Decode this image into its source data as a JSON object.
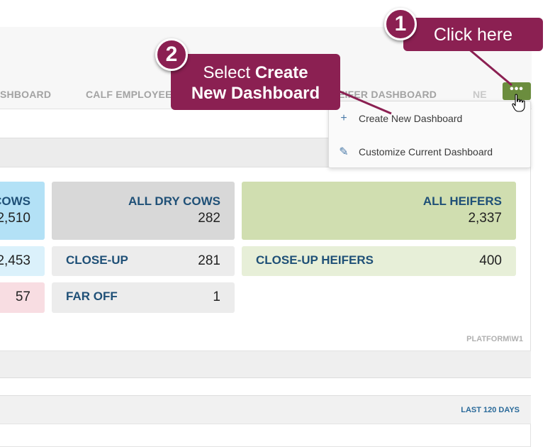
{
  "tabs": [
    {
      "label": "SHBOARD"
    },
    {
      "label": "CALF EMPLOYEES"
    },
    {
      "label": "EIFER DASHBOARD"
    },
    {
      "label": "NE"
    }
  ],
  "more_button": {
    "label": "•••"
  },
  "dropdown": {
    "items": [
      {
        "icon": "+",
        "label": "Create New Dashboard"
      },
      {
        "icon": "✎",
        "label": "Customize Current Dashboard"
      }
    ]
  },
  "cards": {
    "cows": {
      "label": "COWS",
      "value": "2,510"
    },
    "cows_row2": {
      "value": "2,453"
    },
    "cows_row3": {
      "value": "57"
    },
    "dry": {
      "label": "ALL DRY COWS",
      "value": "282"
    },
    "closeup": {
      "label": "CLOSE-UP",
      "value": "281"
    },
    "faroff": {
      "label": "FAR OFF",
      "value": "1"
    },
    "heifers": {
      "label": "ALL HEIFERS",
      "value": "2,337"
    },
    "closeup_heifers": {
      "label": "CLOSE-UP HEIFERS",
      "value": "400"
    }
  },
  "panel_footer": {
    "platform": "PLATFORM\\W1"
  },
  "panel2": {
    "period": "LAST 120 DAYS"
  },
  "callouts": {
    "one": {
      "number": "1",
      "text": "Click here"
    },
    "two": {
      "number": "2",
      "text_prefix": "Select ",
      "text_bold_1": "Create",
      "text_bold_2": "New Dashboard"
    }
  },
  "colors": {
    "callout": "#8b2052",
    "button": "#6b8d3e",
    "cows_card": "#b3e1f6",
    "heifers_card": "#d0deb0"
  }
}
